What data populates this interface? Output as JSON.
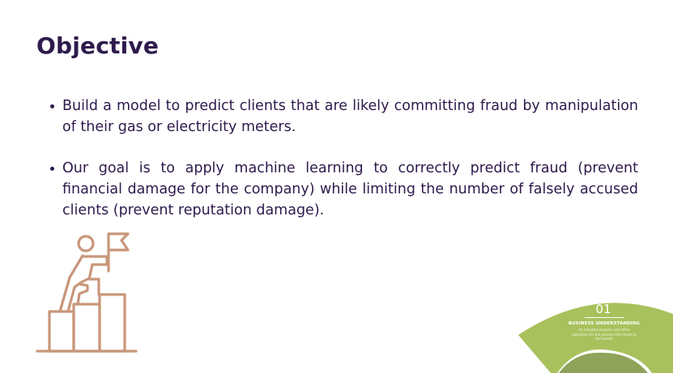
{
  "slide": {
    "title": "Objective",
    "bullets": [
      "Build a model to predict clients that are likely committing fraud by manipulation of their gas or electricity meters.",
      "Our goal is to apply machine learning to correctly predict fraud (prevent financial damage for the company) while limiting the number of falsely accused clients (prevent reputation damage)."
    ]
  },
  "illustration": {
    "icon": "climber-with-flag-on-steps-icon",
    "color": "#c8967a"
  },
  "badge": {
    "number": "01",
    "title": "BUSINESS UNDERSTANDING",
    "description": "An intended purpose and refine objectives for the process that needs to be tackled",
    "color": "#a9c15c",
    "inner_color": "#8fa35a"
  },
  "colors": {
    "text": "#2e1a4c",
    "background": "#ffffff"
  }
}
